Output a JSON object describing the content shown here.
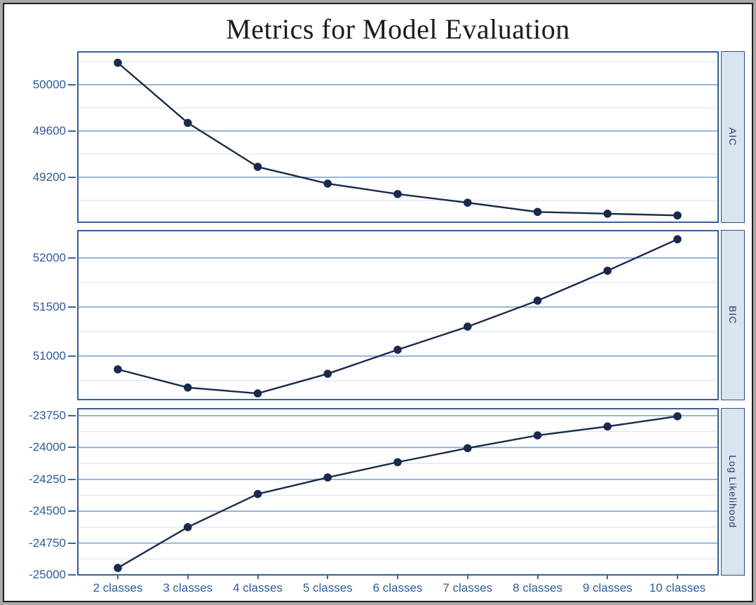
{
  "title": "Metrics for Model Evaluation",
  "chart_data": {
    "type": "line",
    "title": "Metrics for Model Evaluation",
    "layout": "three stacked facet panels sharing one category x-axis, horizontal gridlines (major + minor), facet label strip on right side",
    "x_categories": [
      "2 classes",
      "3 classes",
      "4 classes",
      "5 classes",
      "6 classes",
      "7 classes",
      "8 classes",
      "9 classes",
      "10 classes"
    ],
    "panels": [
      {
        "label": "AIC",
        "values": [
          50190,
          49670,
          49290,
          49145,
          49055,
          48980,
          48900,
          48885,
          48870
        ],
        "ylim": [
          48805,
          50290
        ],
        "major_ticks": [
          50000,
          49600,
          49200
        ],
        "minor_ticks": [
          50200,
          49800,
          49400,
          49000
        ]
      },
      {
        "label": "BIC",
        "values": [
          50865,
          50680,
          50620,
          50820,
          51065,
          51300,
          51565,
          51870,
          52190
        ],
        "ylim": [
          50550,
          52285
        ],
        "major_ticks": [
          52000,
          51500,
          51000
        ],
        "minor_ticks": [
          51750,
          51250,
          50750
        ]
      },
      {
        "label": "Log Likelihood",
        "values": [
          -24945,
          -24625,
          -24365,
          -24235,
          -24115,
          -24005,
          -23905,
          -23835,
          -23755
        ],
        "ylim": [
          -25005,
          -23690
        ],
        "major_ticks": [
          -23750,
          -24000,
          -24250,
          -24500,
          -24750,
          -25000
        ],
        "minor_ticks": [
          -23875,
          -24125,
          -24375,
          -24625,
          -24875
        ]
      }
    ],
    "colors": {
      "line": "#1a2a4c",
      "marker": "#1a2a4c",
      "major_grid": "#7ea6d4",
      "minor_grid": "#dfe7f2",
      "panel_border": "#3a5f94",
      "tick_label": "#2d5c9c",
      "tick_mark": "#3a649f",
      "strip_fill": "#d9e4f1",
      "strip_border": "#2d4e7e",
      "strip_text": "#1f3864",
      "title_text": "#1b1b1b",
      "frame_outer": "#a9a9a9",
      "frame_inner": "#1e1e1e"
    }
  }
}
